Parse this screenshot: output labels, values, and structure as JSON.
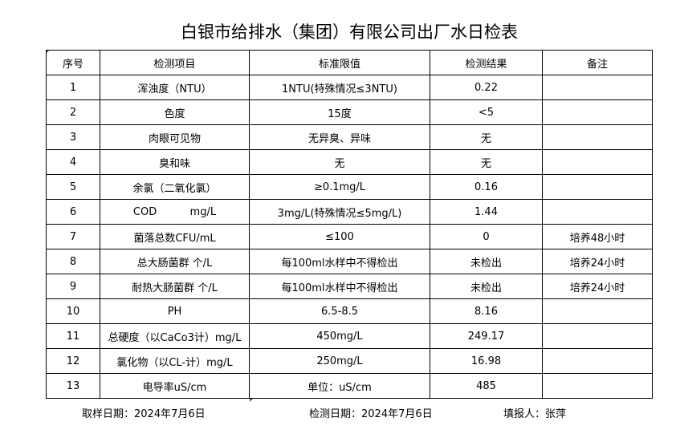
{
  "title": "白银市给排水（集团）有限公司出厂水日检表",
  "table": {
    "headers": [
      "序号",
      "检测项目",
      "标准限值",
      "检测结果",
      "备注"
    ],
    "rows": [
      [
        "1",
        "浑浊度（NTU）",
        "1NTU(特殊情况≤3NTU)",
        "0.22",
        ""
      ],
      [
        "2",
        "色度",
        "15度",
        "<5",
        ""
      ],
      [
        "3",
        "肉眼可见物",
        "无异臭、异味",
        "无",
        ""
      ],
      [
        "4",
        "臭和味",
        "无",
        "无",
        ""
      ],
      [
        "5",
        "余氯（二氧化氯）",
        "≥0.1mg/L",
        "0.16",
        ""
      ],
      [
        "6",
        "COD          mg/L",
        "3mg/L(特殊情况≤5mg/L)",
        "1.44",
        ""
      ],
      [
        "7",
        "菌落总数CFU/mL",
        "≤100",
        "0",
        "培养48小时"
      ],
      [
        "8",
        "总大肠菌群 个/L",
        "每100ml水样中不得检出",
        "未检出",
        "培养24小时"
      ],
      [
        "9",
        "耐热大肠菌群 个/L",
        "每100ml水样中不得检出",
        "未检出",
        "培养24小时"
      ],
      [
        "10",
        "PH",
        "6.5-8.5",
        "8.16",
        ""
      ],
      [
        "11",
        "总硬度（以CaCo3计）mg/L",
        "450mg/L",
        "249.17",
        ""
      ],
      [
        "12",
        "氯化物（以CL-计）mg/L",
        "250mg/L",
        "16.98",
        ""
      ],
      [
        "13",
        "电导率uS/cm",
        "单位：uS/cm",
        "485",
        ""
      ]
    ]
  },
  "footer": {
    "sampling_date": "取样日期：2024年7月6日",
    "test_date": "检测日期：2024年7月6日",
    "reporter": "填报人：张萍"
  }
}
